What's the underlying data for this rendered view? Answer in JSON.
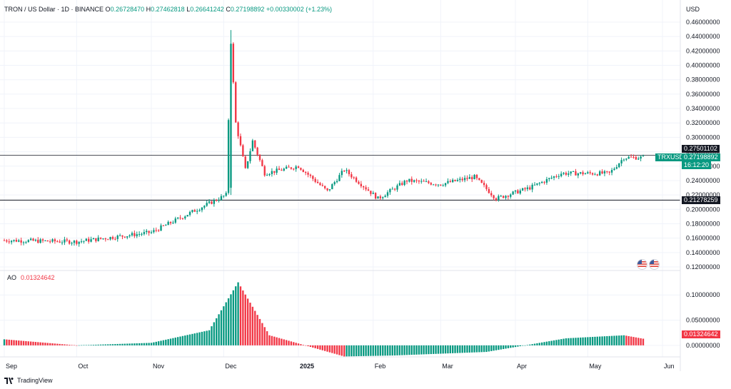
{
  "header": {
    "symbol": "TRON / US Dollar · 1D · BINANCE",
    "o_label": "O",
    "o_value": "0.26728470",
    "h_label": "H",
    "h_value": "0.27462818",
    "l_label": "L",
    "l_value": "0.26641242",
    "c_label": "C",
    "c_value": "0.27198892",
    "change": "+0.00330002 (+1.23%)"
  },
  "currency": "USD",
  "price_axis": {
    "ticks": [
      "0.46000000",
      "0.44000000",
      "0.42000000",
      "0.40000000",
      "0.38000000",
      "0.36000000",
      "0.34000000",
      "0.32000000",
      "0.30000000",
      "0.28000000",
      "0.26000000",
      "0.24000000",
      "0.22000000",
      "0.20000000",
      "0.18000000",
      "0.16000000",
      "0.14000000",
      "0.12000000"
    ],
    "tag_high": "0.27501102",
    "tag_symbol": "TRXUSD",
    "tag_price": "0.27198892",
    "tag_countdown": "16:12:20",
    "tag_low": "0.21278259"
  },
  "ao": {
    "label": "AO",
    "value": "0.01324642",
    "ticks": [
      "0.10000000",
      "0.05000000",
      "0.00000000"
    ],
    "tag_value": "0.01324642"
  },
  "time_axis": [
    "Sep",
    "Oct",
    "Nov",
    "Dec",
    "2025",
    "Feb",
    "Mar",
    "Apr",
    "May",
    "Jun"
  ],
  "footer": {
    "brand": "TradingView"
  },
  "colors": {
    "up": "#089981",
    "down": "#f23645",
    "grid": "#f0f3fa",
    "text": "#131722"
  },
  "icons": [
    "us-flag-icon",
    "us-flag-icon"
  ],
  "chart_data": {
    "type": "candlestick",
    "symbol": "TRXUSD",
    "interval": "1D",
    "exchange": "BINANCE",
    "ylim": [
      0.12,
      0.46
    ],
    "horizontal_lines": [
      0.27501102,
      0.21278259
    ],
    "key_points": [
      {
        "x": "2024-09-01",
        "close": 0.157
      },
      {
        "x": "2024-10-01",
        "close": 0.155
      },
      {
        "x": "2024-11-01",
        "close": 0.168
      },
      {
        "x": "2024-11-20",
        "close": 0.2
      },
      {
        "x": "2024-12-02",
        "close": 0.22
      },
      {
        "x": "2024-12-04",
        "open": 0.23,
        "high": 0.449,
        "low": 0.22,
        "close": 0.43
      },
      {
        "x": "2024-12-06",
        "close": 0.32
      },
      {
        "x": "2024-12-10",
        "close": 0.255
      },
      {
        "x": "2024-12-13",
        "close": 0.295
      },
      {
        "x": "2024-12-18",
        "close": 0.25
      },
      {
        "x": "2025-01-01",
        "close": 0.26
      },
      {
        "x": "2025-01-13",
        "close": 0.225
      },
      {
        "x": "2025-01-20",
        "close": 0.255
      },
      {
        "x": "2025-02-03",
        "close": 0.215
      },
      {
        "x": "2025-02-15",
        "close": 0.24
      },
      {
        "x": "2025-03-01",
        "close": 0.235
      },
      {
        "x": "2025-03-15",
        "close": 0.245
      },
      {
        "x": "2025-03-24",
        "close": 0.215
      },
      {
        "x": "2025-04-07",
        "close": 0.23
      },
      {
        "x": "2025-04-20",
        "close": 0.25
      },
      {
        "x": "2025-05-10",
        "close": 0.25
      },
      {
        "x": "2025-05-16",
        "close": 0.272
      },
      {
        "x": "2025-05-24",
        "close": 0.27198892
      }
    ],
    "ao_range": [
      -0.02,
      0.13
    ],
    "ao_key_points": [
      {
        "x": "2024-09-01",
        "value": 0.012
      },
      {
        "x": "2024-10-01",
        "value": 0.0
      },
      {
        "x": "2024-11-01",
        "value": 0.005
      },
      {
        "x": "2024-11-25",
        "value": 0.03
      },
      {
        "x": "2024-12-07",
        "value": 0.125
      },
      {
        "x": "2024-12-20",
        "value": 0.02
      },
      {
        "x": "2025-01-20",
        "value": -0.022
      },
      {
        "x": "2025-02-10",
        "value": -0.02
      },
      {
        "x": "2025-03-20",
        "value": -0.013
      },
      {
        "x": "2025-04-05",
        "value": 0.0
      },
      {
        "x": "2025-04-22",
        "value": 0.014
      },
      {
        "x": "2025-05-16",
        "value": 0.02
      },
      {
        "x": "2025-05-24",
        "value": 0.01324642
      }
    ]
  }
}
